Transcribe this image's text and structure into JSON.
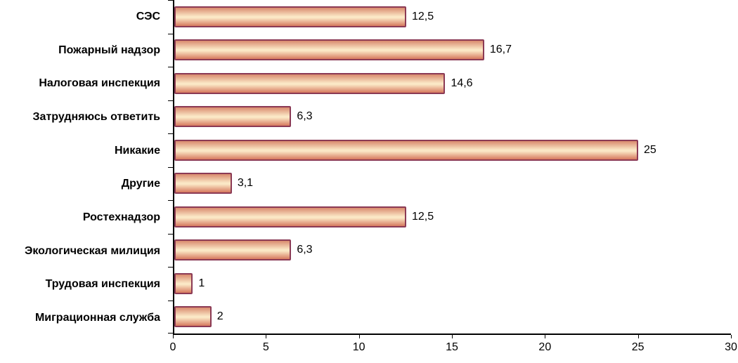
{
  "chart_data": {
    "type": "bar",
    "orientation": "horizontal",
    "title": "",
    "xlabel": "",
    "ylabel": "",
    "categories": [
      "СЭС",
      "Пожарный надзор",
      "Налоговая инспекция",
      "Затрудняюсь ответить",
      "Никакие",
      "Другие",
      "Ростехнадзор",
      "Экологическая милиция",
      "Трудовая инспекция",
      "Миграционная служба"
    ],
    "values": [
      12.5,
      16.7,
      14.6,
      6.3,
      25,
      3.1,
      12.5,
      6.3,
      1,
      2
    ],
    "value_labels": [
      "12,5",
      "16,7",
      "14,6",
      "6,3",
      "25",
      "3,1",
      "12,5",
      "6,3",
      "1",
      "2"
    ],
    "xlim": [
      0,
      30
    ],
    "x_ticks": [
      0,
      5,
      10,
      15,
      20,
      25,
      30
    ],
    "x_tick_labels": [
      "0",
      "5",
      "10",
      "15",
      "20",
      "25",
      "30"
    ],
    "grid": false,
    "legend": false,
    "colors": {
      "bar_fill_top": "#d98a6e",
      "bar_fill_mid": "#fbe8c6",
      "bar_fill_bottom": "#d6795e",
      "bar_border": "#8b3a55",
      "axis": "#000000",
      "background": "#ffffff",
      "text": "#000000"
    }
  }
}
